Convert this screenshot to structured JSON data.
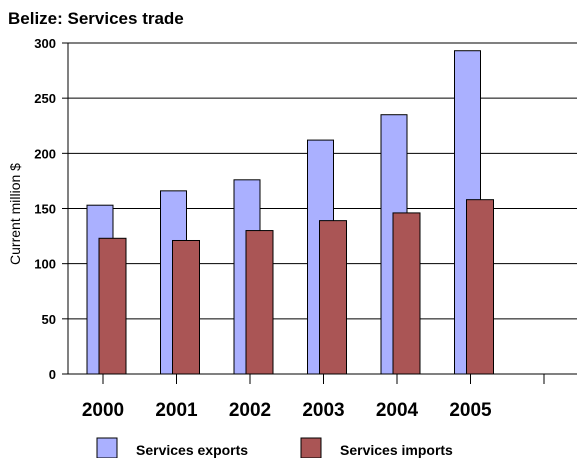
{
  "chart_data": {
    "type": "bar",
    "title": "Belize: Services trade",
    "ylabel": "Current million $",
    "xlabel": "",
    "ylim": [
      0,
      300
    ],
    "yticks": [
      0,
      50,
      100,
      150,
      200,
      250,
      300
    ],
    "categories": [
      "2000",
      "2001",
      "2002",
      "2003",
      "2004",
      "2005"
    ],
    "series": [
      {
        "name": "Services exports",
        "color": "#aab0ff",
        "values": [
          153,
          166,
          176,
          212,
          235,
          293
        ]
      },
      {
        "name": "Services imports",
        "color": "#aa5555",
        "values": [
          123,
          121,
          130,
          139,
          146,
          158
        ]
      }
    ],
    "grid": true,
    "legend_position": "bottom"
  }
}
